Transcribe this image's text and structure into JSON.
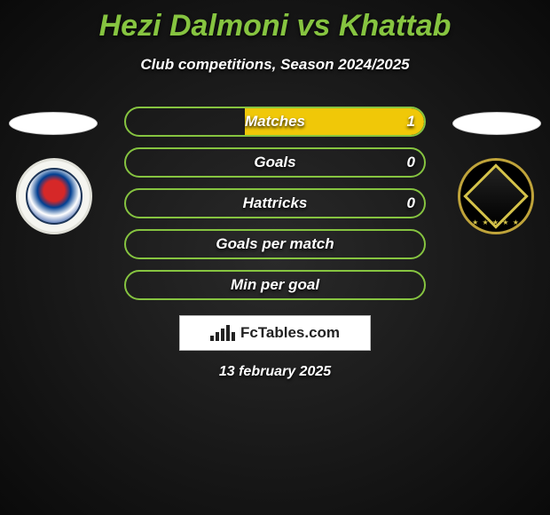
{
  "title": {
    "text": "Hezi Dalmoni vs Khattab",
    "color": "#86c440",
    "fontsize": 34
  },
  "subtitle": {
    "text": "Club competitions, Season 2024/2025",
    "fontsize": 17
  },
  "colors": {
    "left_team": "#86c440",
    "right_team": "#f0c808",
    "bg_dark": "#0a0a0a"
  },
  "badges": {
    "left": {
      "name": "left-club-badge",
      "bg": "#f5f5f0"
    },
    "right": {
      "name": "right-club-badge",
      "bg": "#000000",
      "accent": "#d4c24a"
    }
  },
  "stats": {
    "pill_width": 340,
    "pill_height": 34,
    "rows": [
      {
        "label": "Matches",
        "left": "",
        "right": "1",
        "left_pct": 0,
        "right_pct": 60
      },
      {
        "label": "Goals",
        "left": "",
        "right": "0",
        "left_pct": 0,
        "right_pct": 0
      },
      {
        "label": "Hattricks",
        "left": "",
        "right": "0",
        "left_pct": 0,
        "right_pct": 0
      },
      {
        "label": "Goals per match",
        "left": "",
        "right": "",
        "left_pct": 0,
        "right_pct": 0
      },
      {
        "label": "Min per goal",
        "left": "",
        "right": "",
        "left_pct": 0,
        "right_pct": 0
      }
    ]
  },
  "brand": {
    "text": "FcTables.com"
  },
  "date": {
    "text": "13 february 2025"
  }
}
